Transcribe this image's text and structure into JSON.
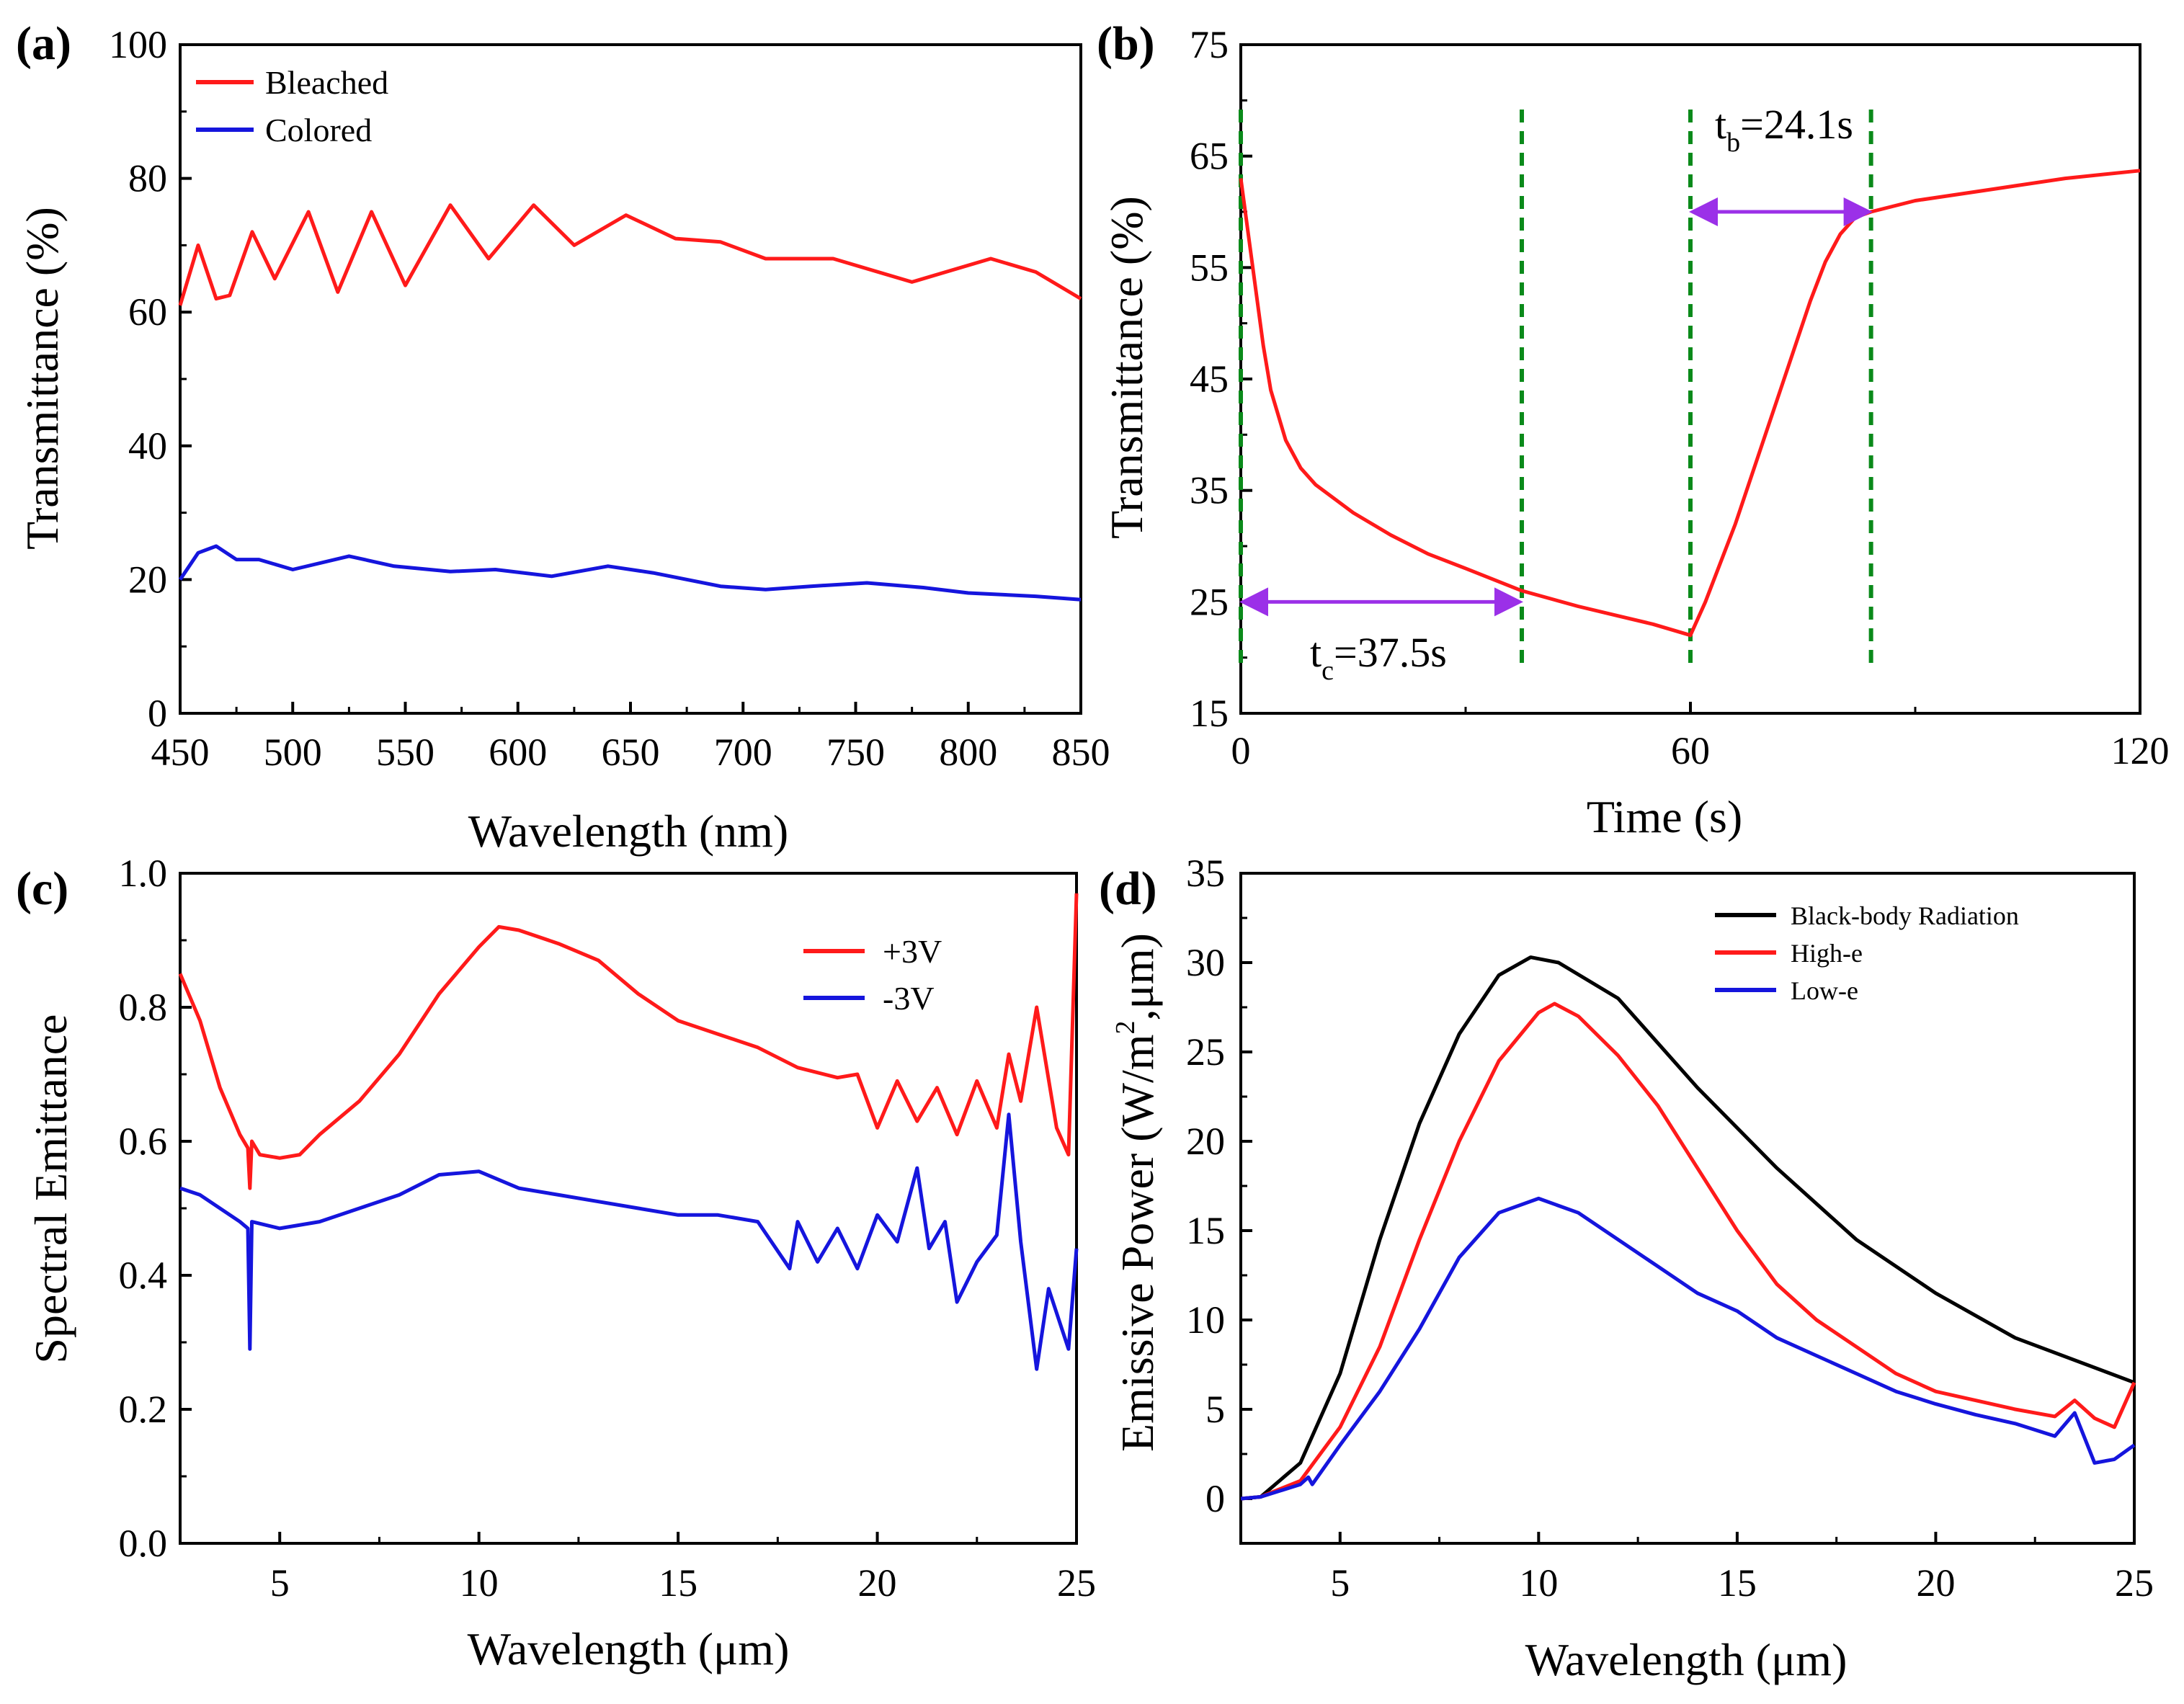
{
  "colors": {
    "red": "#ff1a1a",
    "blue": "#1515dd",
    "black": "#000000",
    "green": "#0a8a1a",
    "purple": "#9b30e8"
  },
  "chart_data": [
    {
      "panel": "(a)",
      "type": "line",
      "xlabel": "Wavelength (nm)",
      "ylabel": "Transmittance (%)",
      "xlim": [
        450,
        850
      ],
      "ylim": [
        0,
        100
      ],
      "xticks": [
        "450",
        "500",
        "550",
        "600",
        "650",
        "700",
        "750",
        "800",
        "850"
      ],
      "yticks": [
        "0",
        "20",
        "40",
        "60",
        "80",
        "100"
      ],
      "legend": [
        "Bleached",
        "Colored"
      ],
      "series": [
        {
          "name": "Bleached",
          "color": "#ff1a1a",
          "x": [
            450,
            458,
            466,
            472,
            482,
            492,
            507,
            520,
            535,
            550,
            570,
            587,
            607,
            625,
            648,
            670,
            690,
            710,
            740,
            775,
            810,
            830,
            850
          ],
          "y": [
            61,
            70,
            62,
            62.5,
            72,
            65,
            75,
            63,
            75,
            64,
            76,
            68,
            76,
            70,
            74.5,
            71,
            70.5,
            68,
            68,
            64.5,
            68,
            66,
            62
          ]
        },
        {
          "name": "Colored",
          "color": "#1515dd",
          "x": [
            450,
            458,
            466,
            475,
            485,
            500,
            525,
            545,
            570,
            590,
            615,
            640,
            660,
            690,
            710,
            730,
            755,
            780,
            800,
            830,
            850
          ],
          "y": [
            20,
            24,
            25,
            23,
            23,
            21.5,
            23.5,
            22,
            21.2,
            21.5,
            20.5,
            22,
            21,
            19,
            18.5,
            19,
            19.5,
            18.8,
            18,
            17.5,
            17
          ]
        }
      ]
    },
    {
      "panel": "(b)",
      "type": "line",
      "xlabel": "Time (s)",
      "ylabel": "Transmittance (%)",
      "xlim": [
        0,
        120
      ],
      "ylim": [
        15,
        75
      ],
      "xticks": [
        "0",
        "60",
        "120"
      ],
      "yticks": [
        "15",
        "25",
        "35",
        "45",
        "55",
        "65",
        "75"
      ],
      "series": [
        {
          "name": "Transmittance",
          "color": "#ff1a1a",
          "x": [
            0,
            1,
            2,
            3,
            4,
            6,
            8,
            10,
            15,
            20,
            25,
            30,
            37.5,
            45,
            50,
            55,
            60,
            62,
            64,
            66,
            68,
            70,
            72,
            74,
            76,
            78,
            80,
            82,
            84.1,
            90,
            100,
            110,
            120
          ],
          "y": [
            63,
            58,
            53,
            48,
            44,
            39.5,
            37,
            35.5,
            33,
            31,
            29.3,
            28,
            26,
            24.6,
            23.8,
            23,
            22,
            25,
            28.5,
            32,
            36,
            40,
            44,
            48,
            52,
            55.5,
            58,
            59.5,
            60,
            61,
            62,
            63,
            63.7
          ]
        }
      ],
      "vlines": [
        0,
        37.5,
        60,
        84.1
      ],
      "annotations": [
        {
          "base": "t",
          "sub": "c",
          "rest": "=37.5s"
        },
        {
          "base": "t",
          "sub": "b",
          "rest": "=24.1s"
        }
      ]
    },
    {
      "panel": "(c)",
      "type": "line",
      "xlabel": "Wavelength (μm)",
      "ylabel": "Spectral Emittance",
      "xlim": [
        2.5,
        25
      ],
      "ylim": [
        0,
        1
      ],
      "xticks": [
        "5",
        "10",
        "15",
        "20",
        "25"
      ],
      "yticks": [
        "0.0",
        "0.2",
        "0.4",
        "0.6",
        "0.8",
        "1.0"
      ],
      "legend": [
        "+3V",
        "-3V"
      ],
      "series": [
        {
          "name": "+3V",
          "color": "#ff1a1a",
          "x": [
            2.5,
            3,
            3.5,
            4,
            4.2,
            4.25,
            4.3,
            4.5,
            5,
            5.5,
            6,
            7,
            8,
            9,
            10,
            10.5,
            11,
            12,
            13,
            14,
            15,
            16,
            17,
            18,
            19,
            19.5,
            20,
            20.5,
            21,
            21.5,
            22,
            22.5,
            23,
            23.3,
            23.6,
            24,
            24.5,
            24.8,
            25
          ],
          "y": [
            0.85,
            0.78,
            0.68,
            0.61,
            0.59,
            0.53,
            0.6,
            0.58,
            0.575,
            0.58,
            0.61,
            0.66,
            0.73,
            0.82,
            0.89,
            0.92,
            0.915,
            0.895,
            0.87,
            0.82,
            0.78,
            0.76,
            0.74,
            0.71,
            0.695,
            0.7,
            0.62,
            0.69,
            0.63,
            0.68,
            0.61,
            0.69,
            0.62,
            0.73,
            0.66,
            0.8,
            0.62,
            0.58,
            0.97
          ]
        },
        {
          "name": "-3V",
          "color": "#1515dd",
          "x": [
            2.5,
            3,
            4,
            4.2,
            4.25,
            4.3,
            5,
            6,
            7,
            8,
            9,
            10,
            11,
            12,
            13,
            14,
            15,
            16,
            17,
            17.8,
            18,
            18.5,
            19,
            19.5,
            20,
            20.5,
            21,
            21.3,
            21.7,
            22,
            22.5,
            23,
            23.3,
            23.6,
            24,
            24.3,
            24.8,
            25
          ],
          "y": [
            0.53,
            0.52,
            0.48,
            0.47,
            0.29,
            0.48,
            0.47,
            0.48,
            0.5,
            0.52,
            0.55,
            0.555,
            0.53,
            0.52,
            0.51,
            0.5,
            0.49,
            0.49,
            0.48,
            0.41,
            0.48,
            0.42,
            0.47,
            0.41,
            0.49,
            0.45,
            0.56,
            0.44,
            0.48,
            0.36,
            0.42,
            0.46,
            0.64,
            0.45,
            0.26,
            0.38,
            0.29,
            0.44
          ]
        }
      ]
    },
    {
      "panel": "(d)",
      "type": "line",
      "xlabel": "Wavelength (μm)",
      "ylabel": "Emissive Power (W/m²,μm)",
      "ylabel_parts": {
        "before": "Emissive Power (W/m",
        "sup": "2",
        "after": ",μm)"
      },
      "xlim": [
        2.5,
        25
      ],
      "ylim": [
        -2.5,
        35
      ],
      "xticks": [
        "5",
        "10",
        "15",
        "20",
        "25"
      ],
      "yticks": [
        "0",
        "5",
        "10",
        "15",
        "20",
        "25",
        "30",
        "35"
      ],
      "legend": [
        "Black-body Radiation",
        "High-e",
        "Low-e"
      ],
      "series": [
        {
          "name": "Black-body Radiation",
          "color": "#000000",
          "x": [
            2.5,
            3,
            4,
            5,
            6,
            7,
            8,
            9,
            9.8,
            10.5,
            12,
            14,
            16,
            18,
            20,
            22,
            25
          ],
          "y": [
            0,
            0.1,
            2,
            7,
            14.5,
            21,
            26,
            29.3,
            30.3,
            30,
            28,
            23,
            18.5,
            14.5,
            11.5,
            9,
            6.5
          ]
        },
        {
          "name": "High-e",
          "color": "#ff1a1a",
          "x": [
            2.5,
            3,
            4,
            5,
            6,
            7,
            8,
            9,
            10,
            10.4,
            11,
            12,
            13,
            14,
            15,
            16,
            17,
            18,
            19,
            20,
            21,
            22,
            23,
            23.5,
            24,
            24.5,
            25
          ],
          "y": [
            0,
            0.1,
            1,
            4,
            8.5,
            14.5,
            20,
            24.5,
            27.2,
            27.7,
            27,
            24.8,
            22,
            18.5,
            15,
            12,
            10,
            8.5,
            7,
            6,
            5.5,
            5,
            4.6,
            5.5,
            4.5,
            4,
            6.5
          ]
        },
        {
          "name": "Low-e",
          "color": "#1515dd",
          "x": [
            2.5,
            3,
            4,
            4.2,
            4.3,
            5,
            6,
            7,
            8,
            9,
            10,
            11,
            12,
            13,
            14,
            15,
            16,
            17,
            18,
            19,
            20,
            21,
            22,
            23,
            23.5,
            24,
            24.5,
            25
          ],
          "y": [
            0,
            0.1,
            0.8,
            1.2,
            0.8,
            3,
            6,
            9.5,
            13.5,
            16,
            16.8,
            16,
            14.5,
            13,
            11.5,
            10.5,
            9,
            8,
            7,
            6,
            5.3,
            4.7,
            4.2,
            3.5,
            4.8,
            2,
            2.2,
            3
          ]
        }
      ]
    }
  ]
}
